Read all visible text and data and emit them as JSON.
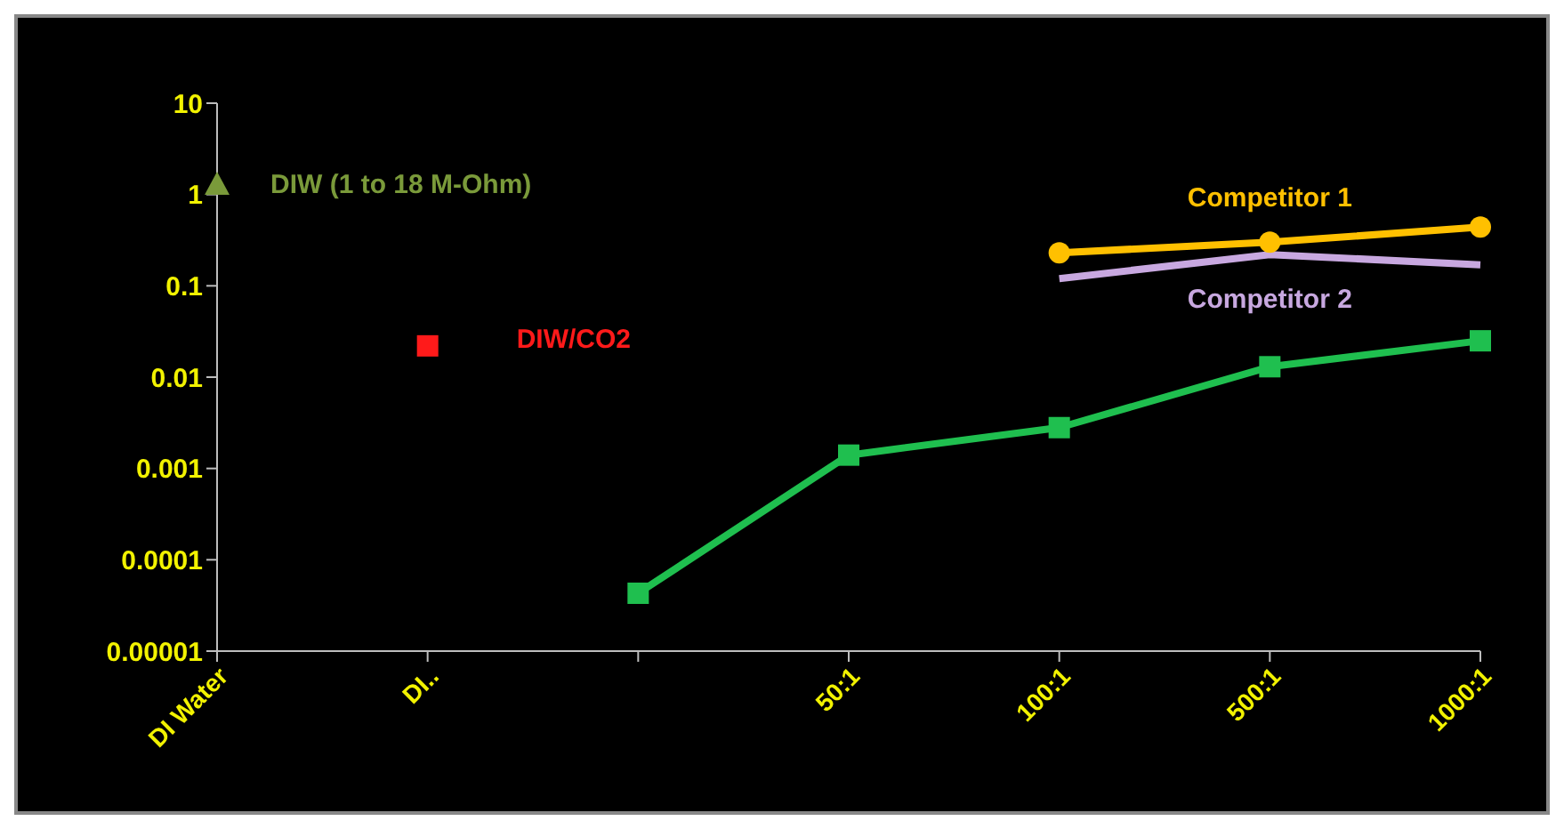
{
  "chart_data": {
    "type": "line",
    "categories": [
      "DI Water",
      "DI..",
      null,
      "50:1",
      "100:1",
      "500:1",
      "1000:1"
    ],
    "series": [
      {
        "name": "DIW (1 to 18 M-Ohm)",
        "type": "scatter",
        "color": "#7a9a3a",
        "marker": "triangle",
        "values": [
          1.3,
          null,
          null,
          null,
          null,
          null,
          null
        ]
      },
      {
        "name": "DIW/CO2",
        "type": "scatter",
        "color": "#ff1a1a",
        "marker": "square",
        "values": [
          null,
          0.022,
          null,
          null,
          null,
          null,
          null
        ]
      },
      {
        "color": "#1fbf4f",
        "marker": "square",
        "values": [
          null,
          null,
          4.3e-05,
          0.0014,
          0.0028,
          0.013,
          0.025
        ]
      },
      {
        "name": "Competitor 1",
        "color": "#ffc000",
        "marker": "circle",
        "values": [
          null,
          null,
          null,
          null,
          0.23,
          0.3,
          0.44
        ]
      },
      {
        "name": "Competitor 2",
        "color": "#c8a8e0",
        "marker": "none",
        "values": [
          null,
          null,
          null,
          null,
          0.12,
          0.22,
          0.17
        ]
      }
    ],
    "log": "y",
    "ylim": [
      1e-05,
      10
    ],
    "yticks": [
      {
        "value": 1e-05,
        "label": "0.00001"
      },
      0.0001,
      0.001,
      0.01,
      0.1,
      1,
      10
    ],
    "grid": false,
    "legend": false,
    "line_style": "solid"
  }
}
